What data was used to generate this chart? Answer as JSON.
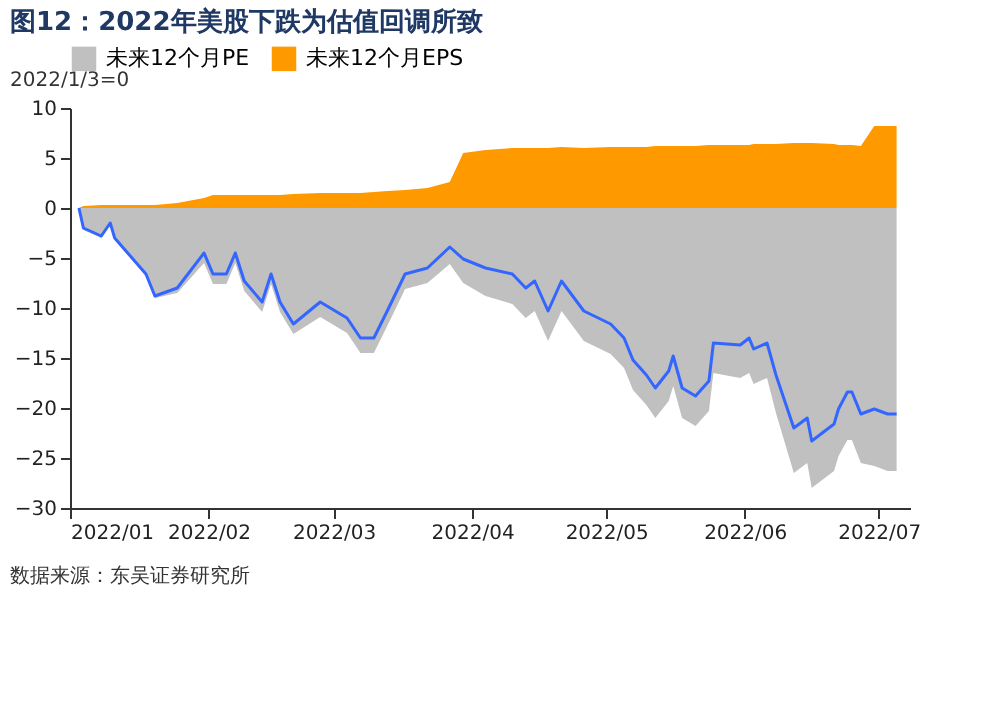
{
  "chart_data": {
    "type": "area",
    "title": "图12：2022年美股下跌为估值回调所致",
    "annotations": [
      "2022/1/3=0",
      "数据来源：东吴证券研究所"
    ],
    "x": [
      "2022-01-03",
      "2022-01-04",
      "2022-01-08",
      "2022-01-10",
      "2022-01-11",
      "2022-01-18",
      "2022-01-20",
      "2022-01-25",
      "2022-01-31",
      "2022-02-02",
      "2022-02-05",
      "2022-02-07",
      "2022-02-09",
      "2022-02-13",
      "2022-02-15",
      "2022-02-17",
      "2022-02-20",
      "2022-02-26",
      "2022-03-04",
      "2022-03-07",
      "2022-03-10",
      "2022-03-13",
      "2022-03-17",
      "2022-03-22",
      "2022-03-27",
      "2022-03-30",
      "2022-04-04",
      "2022-04-10",
      "2022-04-13",
      "2022-04-15",
      "2022-04-18",
      "2022-04-21",
      "2022-04-26",
      "2022-05-02",
      "2022-05-05",
      "2022-05-07",
      "2022-05-10",
      "2022-05-12",
      "2022-05-15",
      "2022-05-16",
      "2022-05-18",
      "2022-05-21",
      "2022-05-24",
      "2022-05-25",
      "2022-05-31",
      "2022-06-02",
      "2022-06-03",
      "2022-06-06",
      "2022-06-08",
      "2022-06-12",
      "2022-06-15",
      "2022-06-16",
      "2022-06-21",
      "2022-06-22",
      "2022-06-24",
      "2022-06-25",
      "2022-06-27",
      "2022-06-30",
      "2022-07-03",
      "2022-07-05"
    ],
    "series": [
      {
        "name": "未来12个月PE",
        "color": "#c0c0c0",
        "values": [
          0,
          -2.2,
          -3.0,
          -1.7,
          -3.2,
          -6.8,
          -9.0,
          -8.5,
          -5.5,
          -7.6,
          -7.6,
          -5.5,
          -8.3,
          -10.4,
          -7.6,
          -10.4,
          -12.6,
          -10.9,
          -12.5,
          -14.5,
          -14.5,
          -11.8,
          -8.1,
          -7.5,
          -5.6,
          -7.5,
          -8.8,
          -9.6,
          -11.0,
          -10.3,
          -13.3,
          -10.3,
          -13.3,
          -14.6,
          -16.0,
          -18.2,
          -19.7,
          -21.0,
          -19.3,
          -17.8,
          -21.0,
          -21.8,
          -20.3,
          -16.5,
          -17.0,
          -16.5,
          -17.6,
          -17.0,
          -20.5,
          -26.5,
          -25.5,
          -28.0,
          -26.3,
          -24.8,
          -23.2,
          -23.2,
          -25.5,
          -25.8,
          -26.3,
          -26.3
        ]
      },
      {
        "name": "未来12个月EPS",
        "color": "#ff9900",
        "values": [
          0,
          0.2,
          0.3,
          0.3,
          0.3,
          0.3,
          0.3,
          0.5,
          1.0,
          1.3,
          1.3,
          1.3,
          1.3,
          1.3,
          1.3,
          1.3,
          1.4,
          1.5,
          1.5,
          1.5,
          1.6,
          1.7,
          1.8,
          2.0,
          2.6,
          5.5,
          5.8,
          6.0,
          6.0,
          6.0,
          6.0,
          6.1,
          6.0,
          6.1,
          6.1,
          6.1,
          6.1,
          6.2,
          6.2,
          6.2,
          6.2,
          6.2,
          6.3,
          6.3,
          6.3,
          6.3,
          6.4,
          6.4,
          6.4,
          6.5,
          6.5,
          6.5,
          6.4,
          6.3,
          6.3,
          6.3,
          6.2,
          8.2,
          8.2,
          8.2
        ]
      },
      {
        "type": "line",
        "color": "#3366ff",
        "values": [
          0,
          -2,
          -2.8,
          -1.5,
          -3,
          -6.6,
          -8.8,
          -8,
          -4.5,
          -6.6,
          -6.6,
          -4.5,
          -7.3,
          -9.4,
          -6.6,
          -9.4,
          -11.6,
          -9.4,
          -11,
          -13,
          -13,
          -10.3,
          -6.6,
          -6,
          -3.9,
          -5.1,
          -6,
          -6.6,
          -8,
          -7.3,
          -10.3,
          -7.3,
          -10.3,
          -11.6,
          -13,
          -15.2,
          -16.7,
          -18,
          -16.3,
          -14.8,
          -18,
          -18.8,
          -17.3,
          -13.5,
          -13.7,
          -13,
          -14.1,
          -13.5,
          -16.7,
          -22,
          -21,
          -23.3,
          -21.6,
          -20.1,
          -18.4,
          -18.4,
          -20.6,
          -20.1,
          -20.6,
          -20.6
        ]
      }
    ],
    "xlim": [
      "2022-01-01",
      "2022-07-08"
    ],
    "xticks": [
      {
        "value": "2022-01-01",
        "label": "2022/01"
      },
      {
        "value": "2022-02-01",
        "label": "2022/02"
      },
      {
        "value": "2022-03-01",
        "label": "2022/03"
      },
      {
        "value": "2022-04-01",
        "label": "2022/04"
      },
      {
        "value": "2022-05-01",
        "label": "2022/05"
      },
      {
        "value": "2022-06-01",
        "label": "2022/06"
      },
      {
        "value": "2022-07-01",
        "label": "2022/07"
      }
    ],
    "ylim": [
      -30,
      10
    ],
    "yticks": [
      -30,
      -25,
      -20,
      -15,
      -10,
      -5,
      0,
      5,
      10
    ],
    "grid": false,
    "legend": "top"
  }
}
